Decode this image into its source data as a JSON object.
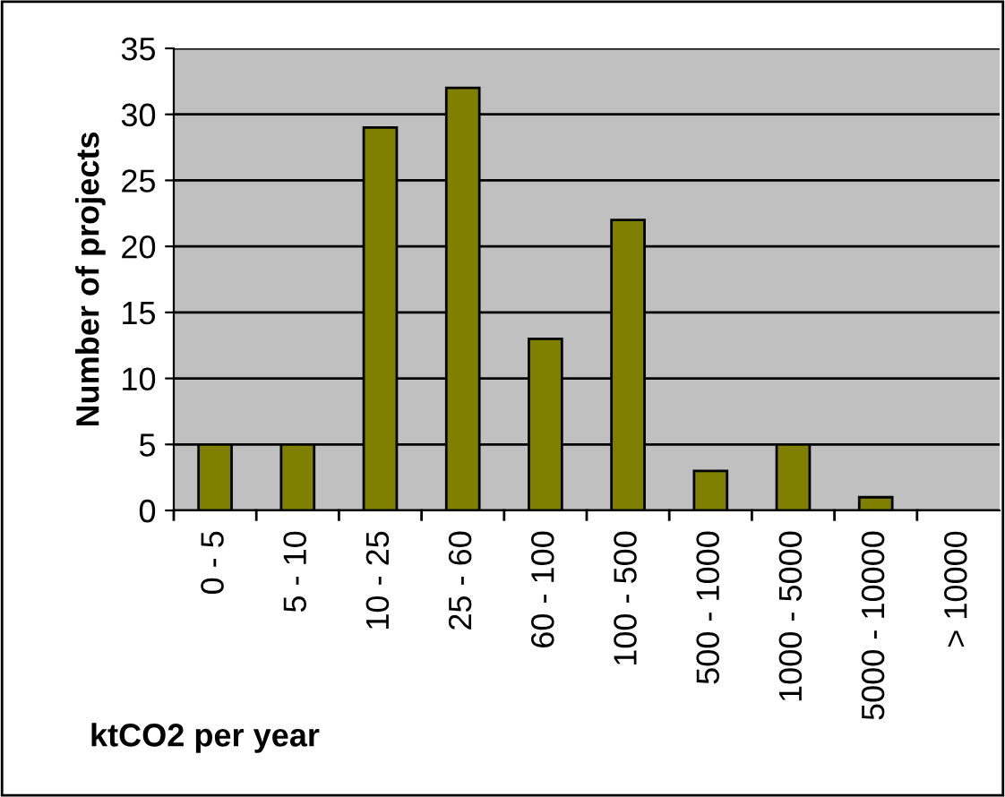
{
  "chart_data": {
    "type": "bar",
    "xlabel": "ktCO2 per year",
    "ylabel": "Number of projects",
    "categories": [
      "0 - 5",
      "5 - 10",
      "10 - 25",
      "25 - 60",
      "60 - 100",
      "100 - 500",
      "500 - 1000",
      "1000 - 5000",
      "5000 - 10000",
      "> 10000"
    ],
    "values": [
      5,
      5,
      29,
      32,
      13,
      22,
      3,
      5,
      1,
      0
    ],
    "color": "#808000",
    "ylim": [
      0,
      35
    ],
    "yticks": [
      0,
      5,
      10,
      15,
      20,
      25,
      30,
      35
    ],
    "grid": "y",
    "legend": false
  }
}
